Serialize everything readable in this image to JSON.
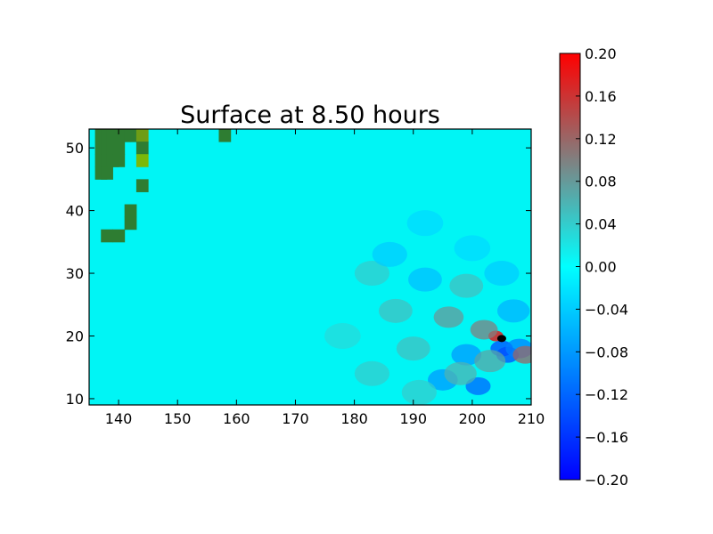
{
  "chart_data": {
    "type": "heatmap",
    "title": "Surface at 8.50 hours",
    "xlabel": "",
    "ylabel": "",
    "xlim": [
      135,
      210
    ],
    "ylim": [
      9,
      53
    ],
    "xticks": [
      140,
      150,
      160,
      170,
      180,
      190,
      200,
      210
    ],
    "yticks": [
      10,
      20,
      30,
      40,
      50
    ],
    "grid": false,
    "colorbar": {
      "min": -0.2,
      "max": 0.2,
      "ticks": [
        "0.20",
        "0.16",
        "0.12",
        "0.08",
        "0.04",
        "0.00",
        "−0.04",
        "−0.08",
        "−0.12",
        "−0.16",
        "−0.20"
      ],
      "colors": {
        "low": "#0000ff",
        "mid": "#00ffff",
        "mid_high": "#808080",
        "high": "#ff0000"
      }
    },
    "background_value": 0.0,
    "land_cells": [
      {
        "x": 136,
        "y": 51,
        "color": "#2e7d32"
      },
      {
        "x": 137,
        "y": 51,
        "color": "#2e7d32"
      },
      {
        "x": 138,
        "y": 51,
        "color": "#2e7d32"
      },
      {
        "x": 139,
        "y": 51,
        "color": "#2e7d32"
      },
      {
        "x": 140,
        "y": 51,
        "color": "#2e7d32"
      },
      {
        "x": 141,
        "y": 51,
        "color": "#2e7d32"
      },
      {
        "x": 142,
        "y": 51,
        "color": "#2e7d32"
      },
      {
        "x": 143,
        "y": 51,
        "color": "#6e9d16"
      },
      {
        "x": 136,
        "y": 49,
        "color": "#2e7d32"
      },
      {
        "x": 137,
        "y": 49,
        "color": "#2e7d32"
      },
      {
        "x": 138,
        "y": 49,
        "color": "#2e7d32"
      },
      {
        "x": 139,
        "y": 49,
        "color": "#2e7d32"
      },
      {
        "x": 143,
        "y": 49,
        "color": "#2e7d32"
      },
      {
        "x": 136,
        "y": 47,
        "color": "#2e7d32"
      },
      {
        "x": 137,
        "y": 47,
        "color": "#2e7d32"
      },
      {
        "x": 138,
        "y": 47,
        "color": "#2e7d32"
      },
      {
        "x": 139,
        "y": 47,
        "color": "#2e7d32"
      },
      {
        "x": 143,
        "y": 47,
        "color": "#7bb80a"
      },
      {
        "x": 136,
        "y": 45,
        "color": "#2e7d32"
      },
      {
        "x": 137,
        "y": 45,
        "color": "#2e7d32"
      },
      {
        "x": 143,
        "y": 43,
        "color": "#2e7d32"
      },
      {
        "x": 141,
        "y": 39,
        "color": "#2e7d32"
      },
      {
        "x": 141,
        "y": 37,
        "color": "#2e7d32"
      },
      {
        "x": 137,
        "y": 35,
        "color": "#2e7d32"
      },
      {
        "x": 139,
        "y": 35,
        "color": "#2e7d32"
      },
      {
        "x": 157,
        "y": 51,
        "color": "#2e7d32"
      }
    ],
    "wave_features": [
      {
        "x": 204,
        "y": 20,
        "value": 0.2
      },
      {
        "x": 205,
        "y": 18,
        "value": -0.14
      },
      {
        "x": 206,
        "y": 17,
        "value": -0.14
      },
      {
        "x": 208,
        "y": 18,
        "value": -0.1
      },
      {
        "x": 209,
        "y": 17,
        "value": 0.12
      },
      {
        "x": 202,
        "y": 21,
        "value": 0.1
      },
      {
        "x": 196,
        "y": 23,
        "value": 0.08
      },
      {
        "x": 199,
        "y": 17,
        "value": -0.08
      },
      {
        "x": 201,
        "y": 12,
        "value": -0.12
      },
      {
        "x": 195,
        "y": 13,
        "value": -0.08
      },
      {
        "x": 198,
        "y": 14,
        "value": 0.06
      },
      {
        "x": 203,
        "y": 16,
        "value": 0.07
      },
      {
        "x": 190,
        "y": 18,
        "value": 0.05
      },
      {
        "x": 187,
        "y": 24,
        "value": 0.05
      },
      {
        "x": 192,
        "y": 29,
        "value": -0.05
      },
      {
        "x": 183,
        "y": 30,
        "value": 0.04
      },
      {
        "x": 186,
        "y": 33,
        "value": -0.04
      },
      {
        "x": 205,
        "y": 30,
        "value": -0.04
      },
      {
        "x": 199,
        "y": 28,
        "value": 0.05
      },
      {
        "x": 200,
        "y": 34,
        "value": -0.03
      },
      {
        "x": 192,
        "y": 38,
        "value": -0.03
      },
      {
        "x": 178,
        "y": 20,
        "value": 0.03
      },
      {
        "x": 183,
        "y": 14,
        "value": 0.04
      },
      {
        "x": 207,
        "y": 24,
        "value": -0.06
      },
      {
        "x": 191,
        "y": 11,
        "value": 0.04
      }
    ],
    "source_marker": {
      "x": 205,
      "y": 19.6
    }
  }
}
